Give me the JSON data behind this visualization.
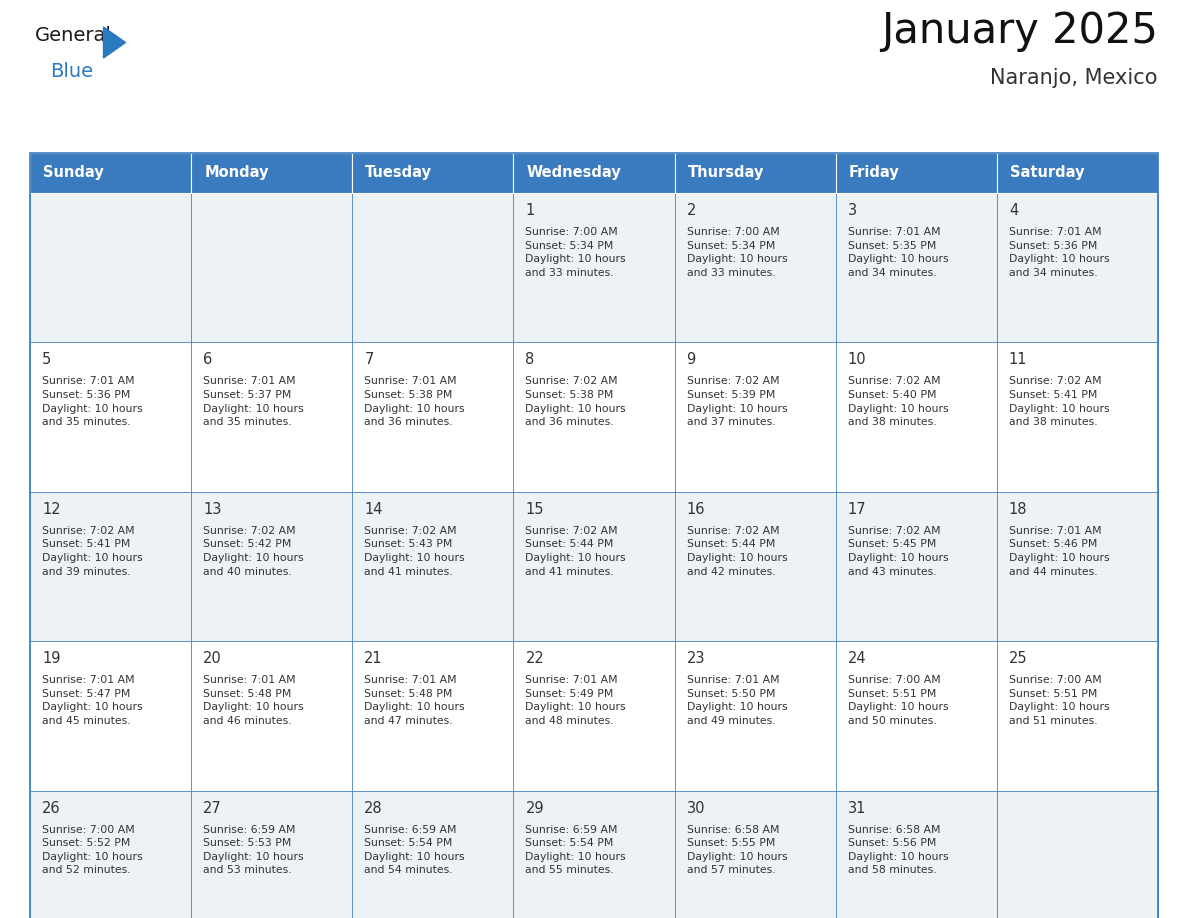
{
  "title": "January 2025",
  "subtitle": "Naranjo, Mexico",
  "days_of_week": [
    "Sunday",
    "Monday",
    "Tuesday",
    "Wednesday",
    "Thursday",
    "Friday",
    "Saturday"
  ],
  "header_bg": "#3a7abf",
  "header_text": "#ffffff",
  "cell_bg_light": "#edf2f7",
  "cell_bg_white": "#ffffff",
  "border_color": "#3a7abf",
  "day_number_color": "#333333",
  "text_color": "#333333",
  "logo_general_color": "#1a1a1a",
  "logo_blue_color": "#2a7abf",
  "weeks": [
    [
      {
        "day": null,
        "info": null
      },
      {
        "day": null,
        "info": null
      },
      {
        "day": null,
        "info": null
      },
      {
        "day": 1,
        "info": "Sunrise: 7:00 AM\nSunset: 5:34 PM\nDaylight: 10 hours\nand 33 minutes."
      },
      {
        "day": 2,
        "info": "Sunrise: 7:00 AM\nSunset: 5:34 PM\nDaylight: 10 hours\nand 33 minutes."
      },
      {
        "day": 3,
        "info": "Sunrise: 7:01 AM\nSunset: 5:35 PM\nDaylight: 10 hours\nand 34 minutes."
      },
      {
        "day": 4,
        "info": "Sunrise: 7:01 AM\nSunset: 5:36 PM\nDaylight: 10 hours\nand 34 minutes."
      }
    ],
    [
      {
        "day": 5,
        "info": "Sunrise: 7:01 AM\nSunset: 5:36 PM\nDaylight: 10 hours\nand 35 minutes."
      },
      {
        "day": 6,
        "info": "Sunrise: 7:01 AM\nSunset: 5:37 PM\nDaylight: 10 hours\nand 35 minutes."
      },
      {
        "day": 7,
        "info": "Sunrise: 7:01 AM\nSunset: 5:38 PM\nDaylight: 10 hours\nand 36 minutes."
      },
      {
        "day": 8,
        "info": "Sunrise: 7:02 AM\nSunset: 5:38 PM\nDaylight: 10 hours\nand 36 minutes."
      },
      {
        "day": 9,
        "info": "Sunrise: 7:02 AM\nSunset: 5:39 PM\nDaylight: 10 hours\nand 37 minutes."
      },
      {
        "day": 10,
        "info": "Sunrise: 7:02 AM\nSunset: 5:40 PM\nDaylight: 10 hours\nand 38 minutes."
      },
      {
        "day": 11,
        "info": "Sunrise: 7:02 AM\nSunset: 5:41 PM\nDaylight: 10 hours\nand 38 minutes."
      }
    ],
    [
      {
        "day": 12,
        "info": "Sunrise: 7:02 AM\nSunset: 5:41 PM\nDaylight: 10 hours\nand 39 minutes."
      },
      {
        "day": 13,
        "info": "Sunrise: 7:02 AM\nSunset: 5:42 PM\nDaylight: 10 hours\nand 40 minutes."
      },
      {
        "day": 14,
        "info": "Sunrise: 7:02 AM\nSunset: 5:43 PM\nDaylight: 10 hours\nand 41 minutes."
      },
      {
        "day": 15,
        "info": "Sunrise: 7:02 AM\nSunset: 5:44 PM\nDaylight: 10 hours\nand 41 minutes."
      },
      {
        "day": 16,
        "info": "Sunrise: 7:02 AM\nSunset: 5:44 PM\nDaylight: 10 hours\nand 42 minutes."
      },
      {
        "day": 17,
        "info": "Sunrise: 7:02 AM\nSunset: 5:45 PM\nDaylight: 10 hours\nand 43 minutes."
      },
      {
        "day": 18,
        "info": "Sunrise: 7:01 AM\nSunset: 5:46 PM\nDaylight: 10 hours\nand 44 minutes."
      }
    ],
    [
      {
        "day": 19,
        "info": "Sunrise: 7:01 AM\nSunset: 5:47 PM\nDaylight: 10 hours\nand 45 minutes."
      },
      {
        "day": 20,
        "info": "Sunrise: 7:01 AM\nSunset: 5:48 PM\nDaylight: 10 hours\nand 46 minutes."
      },
      {
        "day": 21,
        "info": "Sunrise: 7:01 AM\nSunset: 5:48 PM\nDaylight: 10 hours\nand 47 minutes."
      },
      {
        "day": 22,
        "info": "Sunrise: 7:01 AM\nSunset: 5:49 PM\nDaylight: 10 hours\nand 48 minutes."
      },
      {
        "day": 23,
        "info": "Sunrise: 7:01 AM\nSunset: 5:50 PM\nDaylight: 10 hours\nand 49 minutes."
      },
      {
        "day": 24,
        "info": "Sunrise: 7:00 AM\nSunset: 5:51 PM\nDaylight: 10 hours\nand 50 minutes."
      },
      {
        "day": 25,
        "info": "Sunrise: 7:00 AM\nSunset: 5:51 PM\nDaylight: 10 hours\nand 51 minutes."
      }
    ],
    [
      {
        "day": 26,
        "info": "Sunrise: 7:00 AM\nSunset: 5:52 PM\nDaylight: 10 hours\nand 52 minutes."
      },
      {
        "day": 27,
        "info": "Sunrise: 6:59 AM\nSunset: 5:53 PM\nDaylight: 10 hours\nand 53 minutes."
      },
      {
        "day": 28,
        "info": "Sunrise: 6:59 AM\nSunset: 5:54 PM\nDaylight: 10 hours\nand 54 minutes."
      },
      {
        "day": 29,
        "info": "Sunrise: 6:59 AM\nSunset: 5:54 PM\nDaylight: 10 hours\nand 55 minutes."
      },
      {
        "day": 30,
        "info": "Sunrise: 6:58 AM\nSunset: 5:55 PM\nDaylight: 10 hours\nand 57 minutes."
      },
      {
        "day": 31,
        "info": "Sunrise: 6:58 AM\nSunset: 5:56 PM\nDaylight: 10 hours\nand 58 minutes."
      },
      {
        "day": null,
        "info": null
      }
    ]
  ]
}
